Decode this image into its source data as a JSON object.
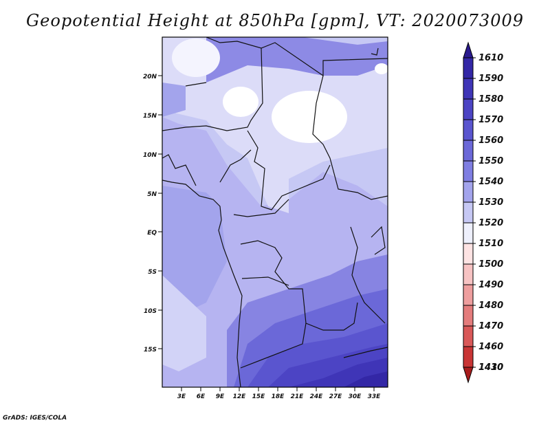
{
  "title": "Geopotential Height at 850hPa [gpm], VT: 2020073009",
  "credit": "GrADS: IGES/COLA",
  "map": {
    "lat_labels": [
      "20N",
      "15N",
      "10N",
      "5N",
      "EQ",
      "5S",
      "10S",
      "15S"
    ],
    "lon_labels": [
      "3E",
      "6E",
      "9E",
      "12E",
      "15E",
      "18E",
      "21E",
      "24E",
      "27E",
      "30E",
      "33E"
    ]
  },
  "colorbar": {
    "labels": [
      "1610",
      "1590",
      "1580",
      "1570",
      "1560",
      "1550",
      "1540",
      "1530",
      "1520",
      "1510",
      "1500",
      "1490",
      "1480",
      "1470",
      "1460",
      "1430",
      "1410"
    ],
    "colors": [
      "#2a1a8e",
      "#3327a6",
      "#3f35b7",
      "#4c44c4",
      "#5a55cf",
      "#6b68d8",
      "#7f7ee2",
      "#a3a4ec",
      "#c6c8f4",
      "#eef0fc",
      "#fde3e3",
      "#f7c3c3",
      "#ee9e9e",
      "#e47c7c",
      "#d95858",
      "#c93535",
      "#a81c1c"
    ]
  }
}
